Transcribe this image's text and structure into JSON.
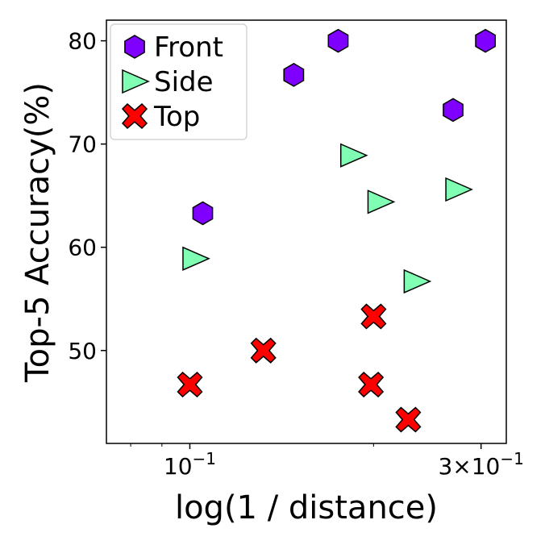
{
  "chart_data": {
    "type": "scatter",
    "xlabel": "log(1 / distance)",
    "ylabel": "Top-5 Accuracy(%)",
    "xscale": "log",
    "xlim": [
      0.073,
      0.33
    ],
    "ylim": [
      41,
      82
    ],
    "x_ticks": [
      {
        "value": 0.1,
        "base": "10",
        "exp": "−1"
      },
      {
        "value": 0.3,
        "base": "3×10",
        "exp": "−1"
      }
    ],
    "y_ticks": [
      50,
      60,
      70,
      80
    ],
    "legend_position": "top-left",
    "series": [
      {
        "name": "Front",
        "marker": "hexagon",
        "color": "#7f00ff",
        "points": [
          [
            0.105,
            63.3
          ],
          [
            0.148,
            76.7
          ],
          [
            0.175,
            80.0
          ],
          [
            0.27,
            73.3
          ],
          [
            0.305,
            80.0
          ]
        ]
      },
      {
        "name": "Side",
        "marker": "triangle-right",
        "color": "#80ffb4",
        "points": [
          [
            0.102,
            58.9
          ],
          [
            0.185,
            68.9
          ],
          [
            0.205,
            64.4
          ],
          [
            0.235,
            56.7
          ],
          [
            0.275,
            65.6
          ]
        ]
      },
      {
        "name": "Top",
        "marker": "x-cross",
        "color": "#ff0000",
        "points": [
          [
            0.1,
            46.7
          ],
          [
            0.132,
            50.0
          ],
          [
            0.2,
            53.3
          ],
          [
            0.198,
            46.7
          ],
          [
            0.228,
            43.3
          ]
        ]
      }
    ]
  }
}
